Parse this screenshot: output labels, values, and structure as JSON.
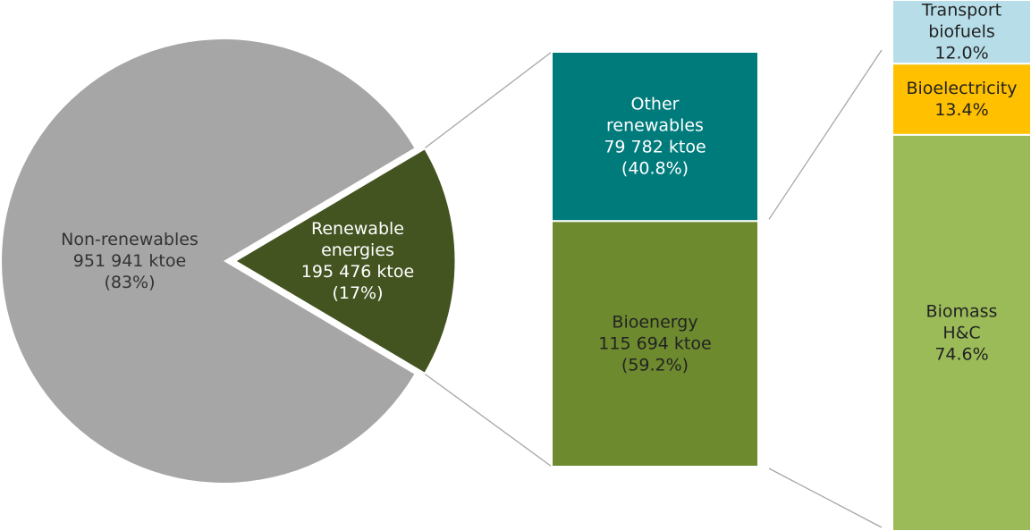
{
  "chart_data": [
    {
      "type": "pie",
      "slices": [
        {
          "label": [
            "Non-renewables",
            "951 941 ktoe",
            "(83%)"
          ],
          "value": 951941,
          "percent": 83,
          "color": "#a6a6a6",
          "text_color": "#333333"
        },
        {
          "label": [
            "Renewable",
            "energies",
            "195 476 ktoe",
            "(17%)"
          ],
          "value": 195476,
          "percent": 17,
          "color": "#435420",
          "text_color": "#ffffff",
          "exploded": true
        }
      ]
    },
    {
      "type": "bar",
      "stacked": true,
      "segments": [
        {
          "label": [
            "Other",
            "renewables",
            "79 782 ktoe",
            "(40.8%)"
          ],
          "value": 79782,
          "percent": 40.8,
          "color": "#007b7b",
          "text_color": "#ffffff"
        },
        {
          "label": [
            "Bioenergy",
            "115 694 ktoe",
            "(59.2%)"
          ],
          "value": 115694,
          "percent": 59.2,
          "color": "#6e8a2f",
          "text_color": "#222222"
        }
      ]
    },
    {
      "type": "bar",
      "stacked": true,
      "segments": [
        {
          "label": [
            "Transport",
            "biofuels",
            "12.0%"
          ],
          "percent": 12.0,
          "color": "#b6dde8",
          "text_color": "#222222"
        },
        {
          "label": [
            "Bioelectricity",
            "13.4%"
          ],
          "percent": 13.4,
          "color": "#ffc000",
          "text_color": "#222222"
        },
        {
          "label": [
            "Biomass",
            "H&C",
            "74.6%"
          ],
          "percent": 74.6,
          "color": "#9bbb59",
          "text_color": "#222222"
        }
      ]
    }
  ]
}
